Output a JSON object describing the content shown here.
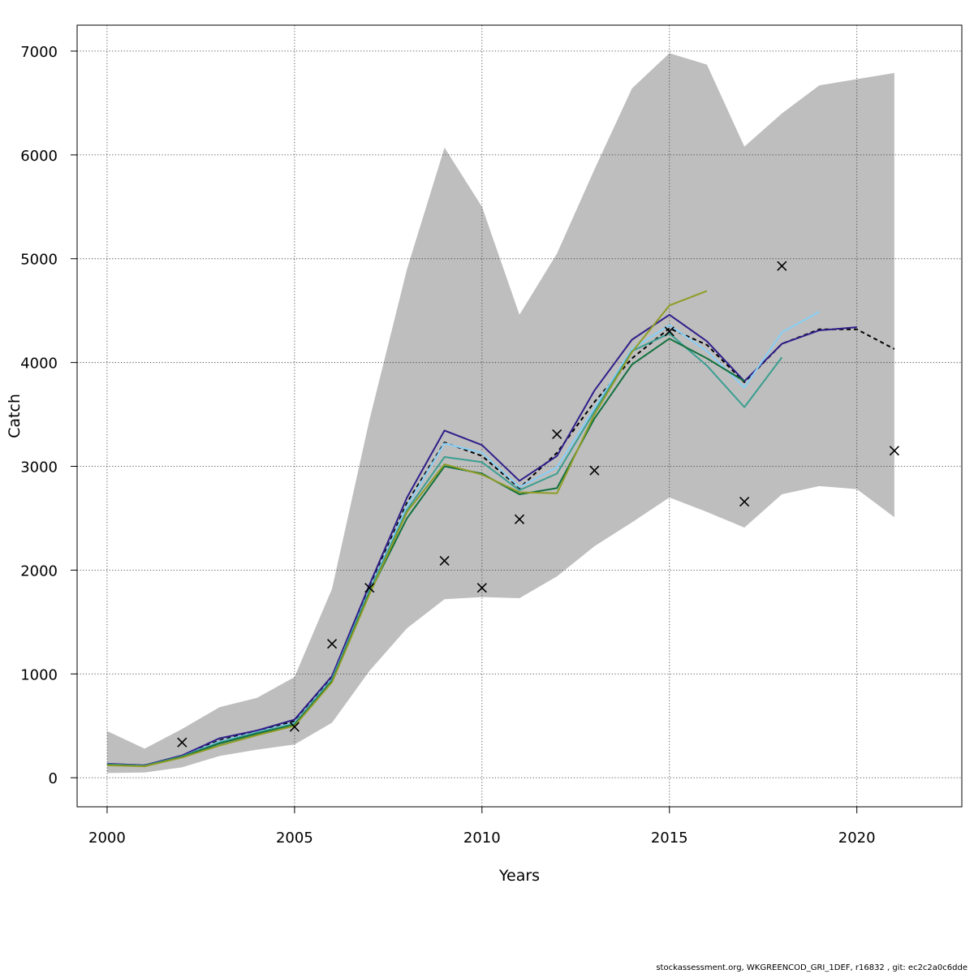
{
  "chart_data": {
    "type": "line",
    "title": "",
    "xlabel": "Years",
    "ylabel": "Catch",
    "xlim": [
      1999.2,
      2022.8
    ],
    "ylim": [
      -280,
      7250
    ],
    "xticks": [
      2000,
      2005,
      2010,
      2015,
      2020
    ],
    "yticks": [
      0,
      1000,
      2000,
      3000,
      4000,
      5000,
      6000,
      7000
    ],
    "grid": true,
    "legend": "none",
    "confidence_band": {
      "x": [
        2000,
        2001,
        2002,
        2003,
        2004,
        2005,
        2006,
        2007,
        2008,
        2009,
        2010,
        2011,
        2012,
        2013,
        2014,
        2015,
        2016,
        2017,
        2018,
        2019,
        2020,
        2021
      ],
      "upper": [
        450,
        280,
        470,
        680,
        770,
        970,
        1820,
        3450,
        4900,
        6070,
        5500,
        4460,
        5050,
        5860,
        6640,
        6980,
        6870,
        6080,
        6400,
        6670,
        6730,
        6790
      ],
      "lower": [
        45,
        50,
        100,
        210,
        270,
        320,
        530,
        1030,
        1440,
        1720,
        1740,
        1730,
        1940,
        2230,
        2460,
        2700,
        2560,
        2410,
        2730,
        2810,
        2780,
        2510
      ],
      "color": "#bebebe"
    },
    "series": [
      {
        "color": "#000000",
        "dashed": true,
        "x": [
          2000,
          2001,
          2002,
          2003,
          2004,
          2005,
          2006,
          2007,
          2008,
          2009,
          2010,
          2011,
          2012,
          2013,
          2014,
          2015,
          2016,
          2017,
          2018,
          2019,
          2020,
          2021
        ],
        "values": [
          130,
          120,
          210,
          360,
          450,
          545,
          970,
          1830,
          2650,
          3230,
          3100,
          2790,
          3130,
          3620,
          4040,
          4330,
          4170,
          3810,
          4180,
          4320,
          4320,
          4130
        ]
      },
      {
        "color": "#2e1e8a",
        "x": [
          2000,
          2001,
          2002,
          2003,
          2004,
          2005,
          2006,
          2007,
          2008,
          2009,
          2010,
          2011,
          2012,
          2013,
          2014,
          2015,
          2016,
          2017,
          2018,
          2019,
          2020
        ],
        "values": [
          135,
          120,
          215,
          380,
          455,
          560,
          980,
          1860,
          2700,
          3345,
          3205,
          2860,
          3100,
          3730,
          4220,
          4460,
          4205,
          3820,
          4180,
          4310,
          4340
        ]
      },
      {
        "color": "#87cef5",
        "x": [
          2000,
          2001,
          2002,
          2003,
          2004,
          2005,
          2006,
          2007,
          2008,
          2009,
          2010,
          2011,
          2012,
          2013,
          2014,
          2015,
          2016,
          2017,
          2018,
          2019
        ],
        "values": [
          130,
          115,
          205,
          350,
          440,
          530,
          950,
          1810,
          2620,
          3220,
          3130,
          2800,
          2990,
          3560,
          4130,
          4360,
          4110,
          3760,
          4290,
          4490
        ]
      },
      {
        "color": "#3a9e91",
        "x": [
          2000,
          2001,
          2002,
          2003,
          2004,
          2005,
          2006,
          2007,
          2008,
          2009,
          2010,
          2011,
          2012,
          2013,
          2014,
          2015,
          2016,
          2017,
          2018
        ],
        "values": [
          128,
          115,
          205,
          340,
          435,
          520,
          945,
          1800,
          2580,
          3090,
          3040,
          2770,
          2930,
          3530,
          4110,
          4280,
          3970,
          3570,
          4050
        ]
      },
      {
        "color": "#11703d",
        "x": [
          2000,
          2001,
          2002,
          2003,
          2004,
          2005,
          2006,
          2007,
          2008,
          2009,
          2010,
          2011,
          2012,
          2013,
          2014,
          2015,
          2016,
          2017
        ],
        "values": [
          125,
          112,
          200,
          330,
          425,
          510,
          930,
          1780,
          2500,
          3000,
          2930,
          2730,
          2790,
          3460,
          3980,
          4230,
          4040,
          3820
        ]
      },
      {
        "color": "#8e9c24",
        "x": [
          2000,
          2001,
          2002,
          2003,
          2004,
          2005,
          2006,
          2007,
          2008,
          2009,
          2010,
          2011,
          2012,
          2013,
          2014,
          2015,
          2016
        ],
        "values": [
          120,
          110,
          195,
          310,
          410,
          500,
          920,
          1770,
          2560,
          3020,
          2920,
          2750,
          2740,
          3500,
          4100,
          4550,
          4690
        ]
      }
    ],
    "observations": {
      "marker": "x",
      "x": [
        2002,
        2005,
        2006,
        2007,
        2009,
        2010,
        2011,
        2012,
        2013,
        2015,
        2017,
        2018,
        2021
      ],
      "values": [
        340,
        490,
        1290,
        1830,
        2090,
        1830,
        2490,
        3310,
        2960,
        4300,
        2660,
        4930,
        3150
      ]
    }
  },
  "footer_text": "stockassessment.org, WKGREENCOD_GRI_1DEF, r16832 , git: ec2c2a0c6dde"
}
